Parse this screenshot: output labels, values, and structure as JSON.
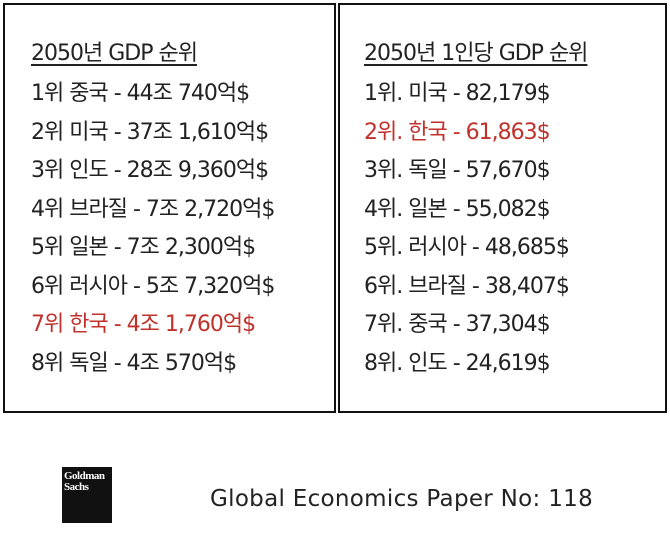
{
  "left": {
    "title": "2050년 GDP 순위",
    "rows": [
      "1위 중국 - 44조 740억$",
      "2위 미국 - 37조 1,610억$",
      "3위 인도 - 28조 9,360억$",
      "4위 브라질 - 7조 2,720억$",
      "5위 일본 - 7조 2,300억$",
      "6위 러시아 - 5조 7,320억$",
      "7위 한국 - 4조 1,760억$",
      "8위 독일 - 4조 570억$"
    ],
    "highlight": 6
  },
  "right": {
    "title": "2050년 1인당 GDP 순위",
    "rows": [
      "1위. 미국 - 82,179$",
      "2위. 한국 - 61,863$",
      "3위. 독일 - 57,670$",
      "4위. 일본 - 55,082$",
      "5위. 러시아 - 48,685$",
      "6위. 브라질 - 38,407$",
      "7위. 중국 - 37,304$",
      "8위. 인도 - 24,619$"
    ],
    "highlight": 1
  },
  "highlight_color": "#c0312b",
  "footer": {
    "logo": "Goldman Sachs",
    "paper": "Global Economics Paper No: 118"
  }
}
